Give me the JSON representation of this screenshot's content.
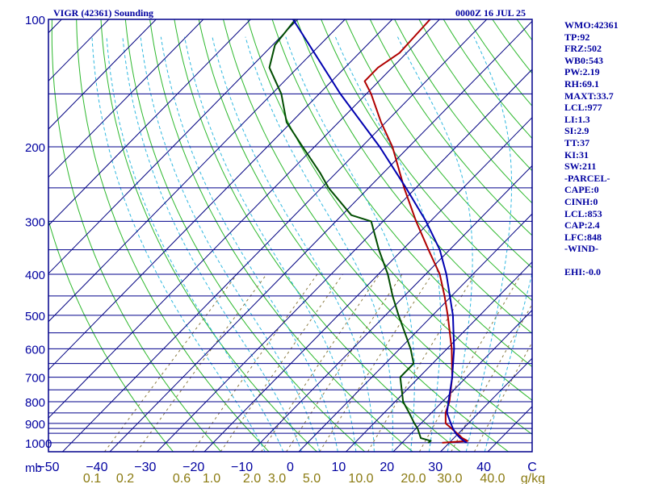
{
  "header": {
    "station": "VIGR (42361) Sounding",
    "time": "0000Z 16 JUL 25"
  },
  "stats": [
    "WMO:42361",
    "TP:92",
    "FRZ:502",
    "WB0:543",
    "PW:2.19",
    "RH:69.1",
    "MAXT:33.7",
    "LCL:977",
    "LI:1.3",
    "SI:2.9",
    "TT:37",
    "KI:31",
    "SW:211",
    "-PARCEL-",
    "CAPE:0",
    "CINH:0",
    "LCL:853",
    "CAP:2.4",
    "LFC:848",
    "-WIND-",
    "",
    "EHI:-0.0"
  ],
  "chart_data": {
    "type": "line",
    "chart_kind": "skew-T log-P sounding",
    "y_scale": "log",
    "ylim": [
      1050,
      100
    ],
    "xlim": [
      -50,
      50
    ],
    "pressure_label": "mb",
    "pressure_ticks": [
      100,
      200,
      300,
      400,
      500,
      600,
      700,
      800,
      900,
      1000
    ],
    "isobars_drawn": [
      100,
      150,
      200,
      250,
      300,
      350,
      400,
      450,
      500,
      550,
      600,
      650,
      700,
      750,
      800,
      850,
      900,
      925,
      950,
      1000
    ],
    "temperature_ticks": [
      "-50",
      "-40",
      "-30",
      "-20",
      "-10",
      "0",
      "10",
      "20",
      "30",
      "40",
      "C"
    ],
    "mixing_ratio_label": "g/kg",
    "mixing_ratio_ticks": [
      "0.1",
      "0.2",
      "0.6",
      "1.0",
      "2.0",
      "3.0",
      "5.0",
      "10.0",
      "20.0",
      "30.0",
      "40.0"
    ],
    "colors": {
      "frame": "#00008b",
      "isobar": "#00008b",
      "isotherm": "#000080",
      "dry_adiabat": "#2db82d",
      "moist_adiabat": "#30b8e0",
      "mixing_ratio": "#8a7a40",
      "temperature": "#b00000",
      "dewpoint": "#004d00",
      "parcel": "#0000b0",
      "axis_text": "#0000a0",
      "mixing_text": "#8a7a10"
    },
    "series": [
      {
        "key": "temperature",
        "points": [
          [
            1000,
            28.5
          ],
          [
            990,
            33.5
          ],
          [
            975,
            31.8
          ],
          [
            925,
            27.5
          ],
          [
            900,
            25.2
          ],
          [
            850,
            23.0
          ],
          [
            800,
            21.5
          ],
          [
            700,
            17.0
          ],
          [
            600,
            11.0
          ],
          [
            500,
            3.2
          ],
          [
            450,
            -1.5
          ],
          [
            400,
            -7.0
          ],
          [
            350,
            -14.5
          ],
          [
            300,
            -23.0
          ],
          [
            250,
            -32.5
          ],
          [
            200,
            -43.5
          ],
          [
            175,
            -51.0
          ],
          [
            150,
            -59.0
          ],
          [
            140,
            -63.0
          ],
          [
            130,
            -63.0
          ],
          [
            120,
            -61.5
          ],
          [
            100,
            -62.0
          ]
        ]
      },
      {
        "key": "dewpoint",
        "points": [
          [
            1000,
            25.5
          ],
          [
            990,
            25.7
          ],
          [
            975,
            23.0
          ],
          [
            960,
            22.2
          ],
          [
            925,
            20.3
          ],
          [
            900,
            18.6
          ],
          [
            850,
            15.3
          ],
          [
            800,
            11.7
          ],
          [
            700,
            6.0
          ],
          [
            650,
            6.0
          ],
          [
            600,
            2.3
          ],
          [
            500,
            -7.2
          ],
          [
            450,
            -12.5
          ],
          [
            400,
            -18.0
          ],
          [
            350,
            -25.0
          ],
          [
            300,
            -32.5
          ],
          [
            290,
            -38.0
          ],
          [
            250,
            -48.5
          ],
          [
            230,
            -53.5
          ],
          [
            200,
            -62.5
          ],
          [
            175,
            -71.0
          ],
          [
            150,
            -78.0
          ],
          [
            130,
            -86.0
          ],
          [
            115,
            -89.5
          ],
          [
            100,
            -90.5
          ]
        ]
      },
      {
        "key": "parcel",
        "points": [
          [
            1000,
            33.7
          ],
          [
            977,
            31.5
          ],
          [
            950,
            29.4
          ],
          [
            925,
            27.8
          ],
          [
            900,
            26.3
          ],
          [
            850,
            23.3
          ],
          [
            800,
            21.3
          ],
          [
            700,
            17.0
          ],
          [
            600,
            11.5
          ],
          [
            500,
            4.3
          ],
          [
            400,
            -5.6
          ],
          [
            350,
            -12.1
          ],
          [
            300,
            -20.9
          ],
          [
            250,
            -32.1
          ],
          [
            200,
            -46.2
          ],
          [
            150,
            -65.5
          ],
          [
            100,
            -91.0
          ]
        ]
      }
    ]
  }
}
